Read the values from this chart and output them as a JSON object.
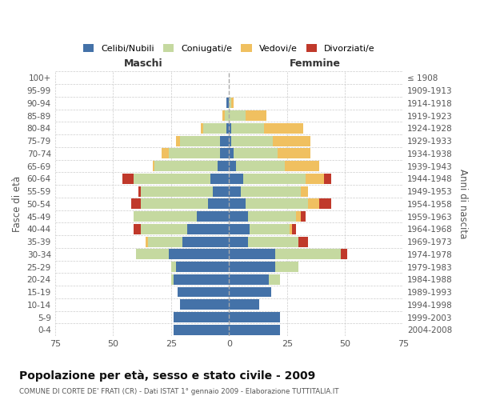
{
  "age_groups": [
    "0-4",
    "5-9",
    "10-14",
    "15-19",
    "20-24",
    "25-29",
    "30-34",
    "35-39",
    "40-44",
    "45-49",
    "50-54",
    "55-59",
    "60-64",
    "65-69",
    "70-74",
    "75-79",
    "80-84",
    "85-89",
    "90-94",
    "95-99",
    "100+"
  ],
  "birth_years": [
    "2004-2008",
    "1999-2003",
    "1994-1998",
    "1989-1993",
    "1984-1988",
    "1979-1983",
    "1974-1978",
    "1969-1973",
    "1964-1968",
    "1959-1963",
    "1954-1958",
    "1949-1953",
    "1944-1948",
    "1939-1943",
    "1934-1938",
    "1929-1933",
    "1924-1928",
    "1919-1923",
    "1914-1918",
    "1909-1913",
    "≤ 1908"
  ],
  "males": {
    "celibi": [
      24,
      24,
      21,
      22,
      24,
      23,
      26,
      20,
      18,
      14,
      9,
      7,
      8,
      5,
      4,
      4,
      1,
      0,
      1,
      0,
      0
    ],
    "coniugati": [
      0,
      0,
      0,
      0,
      1,
      2,
      14,
      15,
      20,
      27,
      29,
      31,
      33,
      27,
      22,
      17,
      10,
      2,
      0,
      0,
      0
    ],
    "vedovi": [
      0,
      0,
      0,
      0,
      0,
      0,
      0,
      1,
      0,
      0,
      0,
      0,
      0,
      1,
      3,
      2,
      1,
      1,
      0,
      0,
      0
    ],
    "divorziati": [
      0,
      0,
      0,
      0,
      0,
      0,
      0,
      0,
      3,
      0,
      4,
      1,
      5,
      0,
      0,
      0,
      0,
      0,
      0,
      0,
      0
    ]
  },
  "females": {
    "nubili": [
      22,
      22,
      13,
      18,
      17,
      20,
      20,
      8,
      9,
      8,
      7,
      5,
      6,
      3,
      2,
      1,
      1,
      0,
      0,
      0,
      0
    ],
    "coniugate": [
      0,
      0,
      0,
      0,
      5,
      10,
      28,
      22,
      17,
      21,
      27,
      26,
      27,
      21,
      19,
      18,
      14,
      7,
      1,
      0,
      0
    ],
    "vedove": [
      0,
      0,
      0,
      0,
      0,
      0,
      0,
      0,
      1,
      2,
      5,
      3,
      8,
      15,
      14,
      16,
      17,
      9,
      1,
      0,
      0
    ],
    "divorziate": [
      0,
      0,
      0,
      0,
      0,
      0,
      3,
      4,
      2,
      2,
      5,
      0,
      3,
      0,
      0,
      0,
      0,
      0,
      0,
      0,
      0
    ]
  },
  "colors": {
    "celibi": "#4472a8",
    "coniugati": "#c5d9a0",
    "vedovi": "#f0c060",
    "divorziati": "#c0392b"
  },
  "title": "Popolazione per età, sesso e stato civile - 2009",
  "subtitle": "COMUNE DI CORTE DE' FRATI (CR) - Dati ISTAT 1° gennaio 2009 - Elaborazione TUTTITALIA.IT",
  "xlim": 75,
  "ylabel_left": "Fasce di età",
  "ylabel_right": "Anni di nascita",
  "xlabel_left": "Maschi",
  "xlabel_right": "Femmine",
  "legend_labels": [
    "Celibi/Nubili",
    "Coniugati/e",
    "Vedovi/e",
    "Divorziati/e"
  ],
  "background_color": "#ffffff"
}
